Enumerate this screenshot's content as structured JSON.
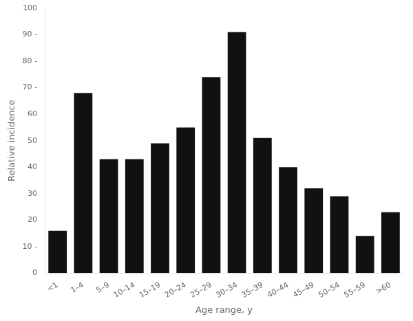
{
  "chart_data": {
    "type": "bar",
    "categories": [
      "<1",
      "1–4",
      "5–9",
      "10–14",
      "15–19",
      "20–24",
      "25–29",
      "30–34",
      "35–39",
      "40–44",
      "45–49",
      "50–54",
      "55–59",
      ">60"
    ],
    "values": [
      16,
      68,
      43,
      43,
      49,
      55,
      74,
      91,
      51,
      40,
      32,
      29,
      14,
      23
    ],
    "color": "#111111",
    "xlabel": "Age range, y",
    "ylabel": "Relative incidence",
    "ylim": [
      0,
      100
    ],
    "yticks": [
      0,
      {
        "value": 10,
        "label": "10 -"
      },
      20,
      30,
      40,
      50,
      60,
      {
        "value": 70,
        "label": "70 -"
      },
      {
        "value": 80,
        "label": "80 -"
      },
      {
        "value": 90,
        "label": "90 -"
      },
      100
    ],
    "grid": false
  }
}
